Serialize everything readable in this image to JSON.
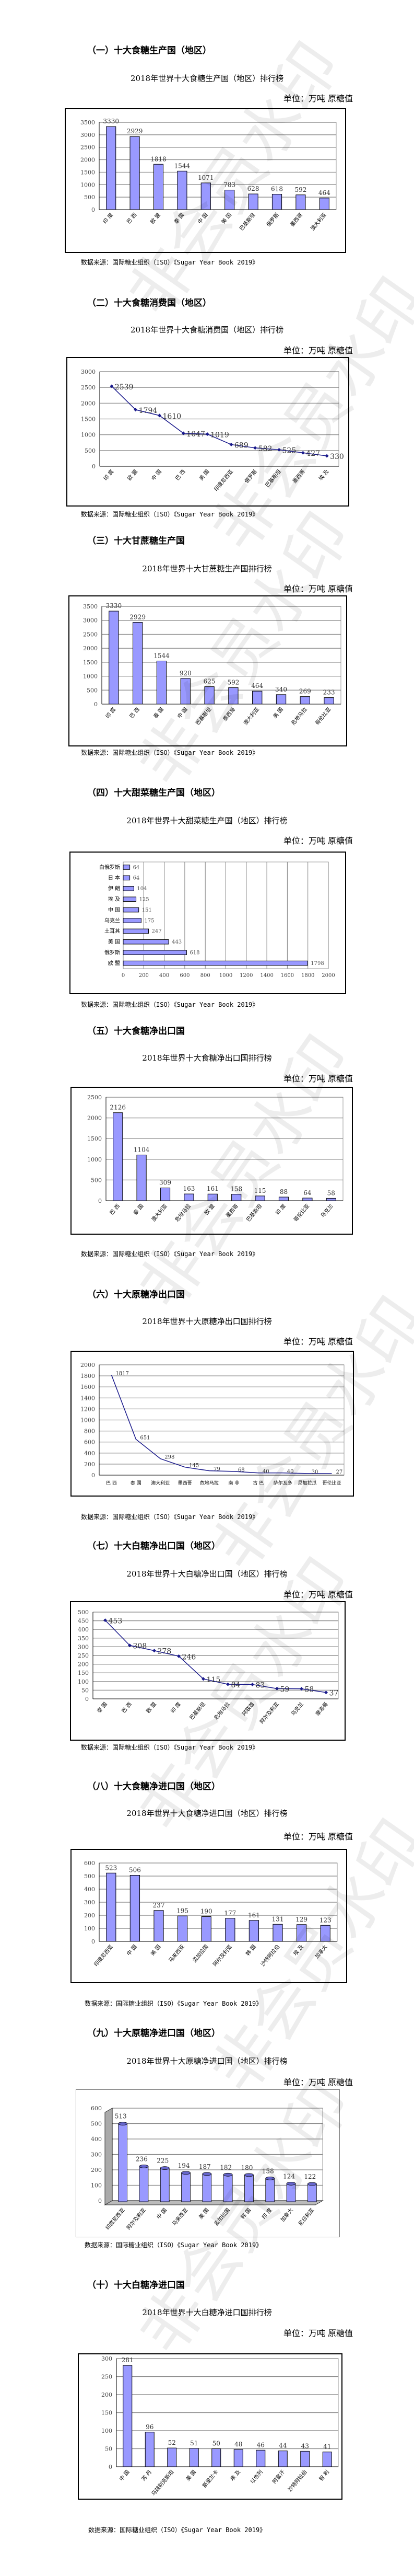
{
  "watermark": "非会员水印",
  "colors": {
    "bar": "#9999ff",
    "bar_stroke": "#000000",
    "line": "#1a1a8c",
    "grid": "#808080"
  },
  "sections": [
    {
      "heading": "（一）十大食糖生产国（地区）",
      "title": "2018年世界十大食糖生产国（地区）排行榜",
      "unit": "单位：万吨  原糖值",
      "source": "数据来源：国际糖业组织（ISO）《Sugar Year Book 2019》",
      "chart_data": {
        "type": "bar",
        "categories": [
          "印 度",
          "巴 西",
          "欧 盟",
          "泰 国",
          "中 国",
          "美 国",
          "巴基斯坦",
          "俄罗斯",
          "墨西哥",
          "澳大利亚"
        ],
        "values": [
          3330,
          2929,
          1818,
          1544,
          1071,
          783,
          628,
          618,
          592,
          464
        ],
        "ylim": [
          0,
          3500
        ],
        "yticks": [
          "0",
          "500",
          "1000",
          "1500",
          "2000",
          "2500",
          "3000",
          "3500"
        ],
        "grid": true,
        "legend": "none"
      }
    },
    {
      "heading": "（二）十大食糖消费国（地区）",
      "title": "2018年世界十大食糖消费国（地区）排行榜",
      "unit": "单位：万吨  原糖值",
      "source": "数据来源：国际糖业组织（ISO）《Sugar Year Book 2019》",
      "chart_data": {
        "type": "line",
        "markers": true,
        "categories": [
          "印 度",
          "欧 盟",
          "中 国",
          "巴 西",
          "美 国",
          "印度尼西亚",
          "俄罗斯",
          "巴基斯坦",
          "墨西哥",
          "埃 及"
        ],
        "values": [
          2539,
          1794,
          1610,
          1047,
          1019,
          689,
          582,
          525,
          427,
          330
        ],
        "ylim": [
          0,
          3000
        ],
        "yticks": [
          "0",
          "500",
          "1000",
          "1500",
          "2000",
          "2500",
          "3000"
        ],
        "grid": true,
        "legend": "none"
      }
    },
    {
      "heading": "（三）十大甘蔗糖生产国",
      "title": "2018年世界十大甘蔗糖生产国排行榜",
      "unit": "单位：万吨  原糖值",
      "source": "数据来源：国际糖业组织（ISO）《Sugar Year Book 2019》",
      "chart_data": {
        "type": "bar",
        "categories": [
          "印 度",
          "巴 西",
          "泰 国",
          "中 国",
          "巴基斯坦",
          "墨西哥",
          "澳大利亚",
          "美 国",
          "危地马拉",
          "哥伦比亚"
        ],
        "values": [
          3330,
          2929,
          1544,
          920,
          625,
          592,
          464,
          340,
          269,
          233
        ],
        "ylim": [
          0,
          3500
        ],
        "yticks": [
          "0",
          "500",
          "1000",
          "1500",
          "2000",
          "2500",
          "3000",
          "3500"
        ],
        "grid": true,
        "legend": "none"
      }
    },
    {
      "heading": "（四）十大甜菜糖生产国（地区）",
      "title": "2018年世界十大甜菜糖生产国（地区）排行榜",
      "unit": "单位：万吨  原糖值",
      "source": "数据来源：国际糖业组织（ISO）《Sugar Year Book 2019》",
      "chart_data": {
        "type": "hbar",
        "categories": [
          "白俄罗斯",
          "日 本",
          "伊 朗",
          "埃 及",
          "中 国",
          "乌克兰",
          "土耳其",
          "美 国",
          "俄罗斯",
          "欧 盟"
        ],
        "values": [
          64,
          64,
          104,
          125,
          151,
          175,
          247,
          443,
          618,
          1798
        ],
        "xlim": [
          0,
          2000
        ],
        "xticks": [
          "0",
          "200",
          "400",
          "600",
          "800",
          "1000",
          "1200",
          "1400",
          "1600",
          "1800",
          "2000"
        ],
        "grid": true,
        "legend": "none"
      }
    },
    {
      "heading": "（五）十大食糖净出口国",
      "title": "2018年世界十大食糖净出口国排行榜",
      "unit": "单位：万吨  原糖值",
      "source": "数据来源：国际糖业组织（ISO）《Sugar Year Book 2019》",
      "chart_data": {
        "type": "bar",
        "categories": [
          "巴 西",
          "泰 国",
          "澳大利亚",
          "危地马拉",
          "欧 盟",
          "墨西哥",
          "巴基斯坦",
          "印 度",
          "哥伦比亚",
          "乌克兰"
        ],
        "values": [
          2126,
          1104,
          309,
          163,
          161,
          158,
          115,
          88,
          64,
          58
        ],
        "ylim": [
          0,
          2500
        ],
        "yticks": [
          "0",
          "500",
          "1000",
          "1500",
          "2000",
          "2500"
        ],
        "grid": true,
        "legend": "none"
      }
    },
    {
      "heading": "（六）十大原糖净出口国",
      "title": "2018年世界十大原糖净出口国排行榜",
      "unit": "单位：万吨  原糖值",
      "source": "数据来源：国际糖业组织（ISO）《Sugar Year Book 2019》",
      "chart_data": {
        "type": "line",
        "markers": false,
        "categories": [
          "巴 西",
          "泰 国",
          "澳大利亚",
          "墨西哥",
          "危地马拉",
          "南 非",
          "古 巴",
          "萨尔瓦多",
          "尼加拉瓜",
          "哥伦比亚"
        ],
        "values": [
          1817,
          651,
          298,
          145,
          79,
          68,
          40,
          40,
          30,
          27
        ],
        "ylim": [
          0,
          2000
        ],
        "yticks": [
          "0",
          "200",
          "400",
          "600",
          "800",
          "1000",
          "1200",
          "1400",
          "1600",
          "1800",
          "2000"
        ],
        "grid": true,
        "legend": "none"
      }
    },
    {
      "heading": "（七）十大白糖净出口国（地区）",
      "title": "2018年世界十大白糖净出口国（地区）排行榜",
      "unit": "单位：万吨  原糖值",
      "source": "数据来源：国际糖业组织（ISO）《Sugar Year Book 2019》",
      "chart_data": {
        "type": "line",
        "markers": true,
        "categories": [
          "泰 国",
          "巴 西",
          "欧 盟",
          "印 度",
          "巴基斯坦",
          "危地马拉",
          "阿联酋",
          "阿尔及利亚",
          "乌克兰",
          "摩洛哥"
        ],
        "values": [
          453,
          308,
          278,
          246,
          115,
          84,
          83,
          59,
          58,
          37
        ],
        "ylim": [
          0,
          500
        ],
        "yticks": [
          "0",
          "50",
          "100",
          "150",
          "200",
          "250",
          "300",
          "350",
          "400",
          "450",
          "500"
        ],
        "grid": true,
        "legend": "none"
      }
    },
    {
      "heading": "（八）十大食糖净进口国（地区）",
      "title": "2018年世界十大食糖净进口国（地区）排行榜",
      "unit": "单位：万吨  原糖值",
      "source": "数据来源：国际糖业组织（ISO）《Sugar Year Book 2019》",
      "chart_data": {
        "type": "bar",
        "categories": [
          "印度尼西亚",
          "中 国",
          "美 国",
          "马来西亚",
          "孟加拉国",
          "阿尔及利亚",
          "韩 国",
          "沙特阿拉伯",
          "埃 及",
          "加拿大"
        ],
        "values": [
          523,
          506,
          237,
          195,
          190,
          177,
          161,
          131,
          129,
          123
        ],
        "ylim": [
          0,
          600
        ],
        "yticks": [
          "0",
          "100",
          "200",
          "300",
          "400",
          "500",
          "600"
        ],
        "grid": true,
        "legend": "none"
      }
    },
    {
      "heading": "（九）十大原糖净进口国（地区）",
      "title": "2018年世界十大原糖净进口国（地区）排行榜",
      "unit": "单位：万吨  原糖值",
      "source": "数据来源：国际糖业组织（ISO）《Sugar Year Book 2019》",
      "chart_data": {
        "type": "bar3d",
        "categories": [
          "印度尼西亚",
          "阿尔及利亚",
          "中 国",
          "马来西亚",
          "美 国",
          "孟加拉国",
          "韩 国",
          "印 度",
          "加拿大",
          "尼日利亚"
        ],
        "values": [
          513,
          236,
          225,
          194,
          187,
          182,
          180,
          158,
          124,
          122
        ],
        "ylim": [
          0,
          600
        ],
        "yticks": [
          "0",
          "100",
          "200",
          "300",
          "400",
          "500",
          "600"
        ],
        "grid": true,
        "legend": "none"
      }
    },
    {
      "heading": "（十）十大白糖净进口国",
      "title": "2018年世界十大白糖净进口国排行榜",
      "unit": "单位：万吨  原糖值",
      "source": "数据来源：国际糖业组织（ISO）《Sugar Year Book 2019》",
      "chart_data": {
        "type": "bar",
        "categories": [
          "中 国",
          "苏 丹",
          "乌兹别克斯坦",
          "美 国",
          "斯里兰卡",
          "埃 及",
          "以色列",
          "阿富汗",
          "沙特阿拉伯",
          "智 利"
        ],
        "values": [
          281,
          96,
          52,
          51,
          50,
          48,
          46,
          44,
          43,
          41
        ],
        "ylim": [
          0,
          300
        ],
        "yticks": [
          "0",
          "50",
          "100",
          "150",
          "200",
          "250",
          "300"
        ],
        "grid": true,
        "legend": "none"
      }
    }
  ]
}
